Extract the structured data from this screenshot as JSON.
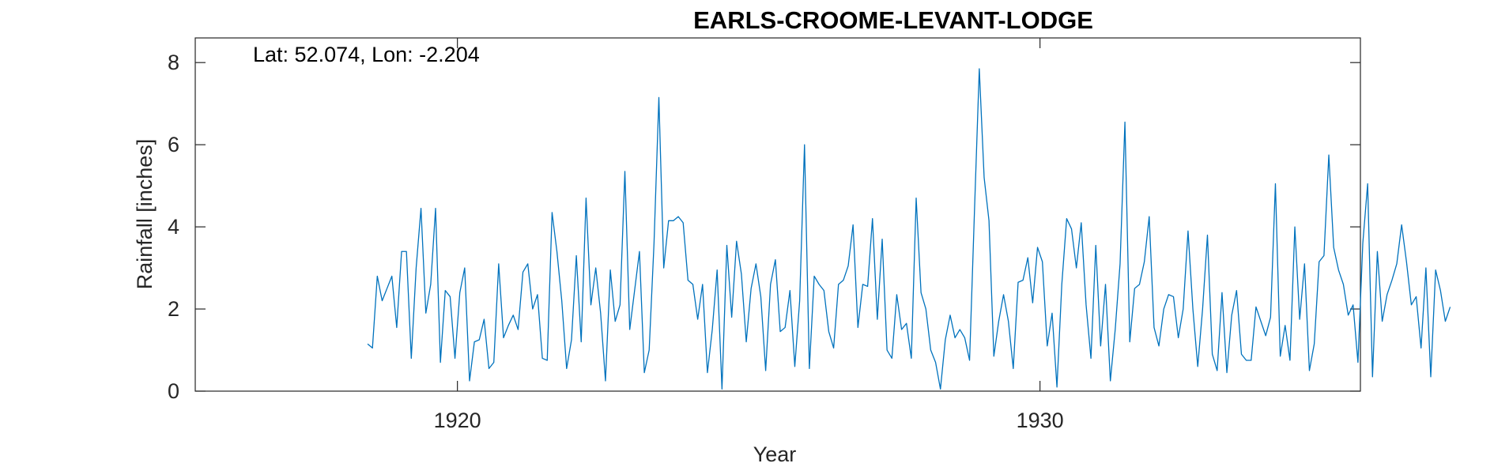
{
  "chart_data": {
    "type": "line",
    "title": "EARLS-CROOME-LEVANT-LODGE",
    "annotation": "Lat: 52.074, Lon: -2.204",
    "xlabel": "Year",
    "ylabel": "Rainfall [inches]",
    "xlim": [
      1915.5,
      1935.5
    ],
    "ylim": [
      0,
      8.6
    ],
    "xticks": [
      1920,
      1930
    ],
    "yticks": [
      0,
      2,
      4,
      6,
      8
    ],
    "grid": false,
    "line_color": "#0072bd",
    "series": [
      {
        "x_start": 1918.4583,
        "x_step": 0.08333,
        "values": [
          1.15,
          1.05,
          2.8,
          2.2,
          2.5,
          2.8,
          1.55,
          3.4,
          3.4,
          0.8,
          3.0,
          4.45,
          1.9,
          2.6,
          4.45,
          0.7,
          2.45,
          2.3,
          0.8,
          2.4,
          3.0,
          0.25,
          1.2,
          1.25,
          1.75,
          0.55,
          0.7,
          3.1,
          1.3,
          1.6,
          1.85,
          1.5,
          2.9,
          3.1,
          2.0,
          2.35,
          0.8,
          0.75,
          4.35,
          3.4,
          2.2,
          0.55,
          1.25,
          3.3,
          1.2,
          4.7,
          2.1,
          3.0,
          1.9,
          0.25,
          2.95,
          1.7,
          2.1,
          5.35,
          1.5,
          2.45,
          3.4,
          0.45,
          1.0,
          3.6,
          7.15,
          3.0,
          4.15,
          4.15,
          4.25,
          4.1,
          2.7,
          2.6,
          1.75,
          2.6,
          0.45,
          1.5,
          2.95,
          0.05,
          3.55,
          1.8,
          3.65,
          2.85,
          1.2,
          2.5,
          3.1,
          2.3,
          0.5,
          2.6,
          3.2,
          1.45,
          1.55,
          2.45,
          0.6,
          2.2,
          6.0,
          0.55,
          2.8,
          2.6,
          2.45,
          1.45,
          1.05,
          2.6,
          2.7,
          3.05,
          4.05,
          1.55,
          2.6,
          2.55,
          4.2,
          1.75,
          3.7,
          1.0,
          0.8,
          2.35,
          1.5,
          1.65,
          0.8,
          4.7,
          2.4,
          2.0,
          1.0,
          0.7,
          0.05,
          1.25,
          1.85,
          1.3,
          1.5,
          1.3,
          0.75,
          4.35,
          7.85,
          5.2,
          4.15,
          0.85,
          1.7,
          2.35,
          1.7,
          0.55,
          2.65,
          2.7,
          3.25,
          2.15,
          3.5,
          3.15,
          1.1,
          1.9,
          0.1,
          2.6,
          4.2,
          3.95,
          3.0,
          4.1,
          2.1,
          0.8,
          3.55,
          1.1,
          2.6,
          0.25,
          1.5,
          3.1,
          6.55,
          1.2,
          2.5,
          2.6,
          3.15,
          4.25,
          1.55,
          1.1,
          2.0,
          2.35,
          2.3,
          1.3,
          2.0,
          3.9,
          2.0,
          0.6,
          2.0,
          3.8,
          0.9,
          0.5,
          2.4,
          0.45,
          1.85,
          2.45,
          0.9,
          0.75,
          0.75,
          2.05,
          1.7,
          1.35,
          1.8,
          5.05,
          0.85,
          1.6,
          0.75,
          4.0,
          1.75,
          3.1,
          0.5,
          1.15,
          3.15,
          3.3,
          5.75,
          3.5,
          2.95,
          2.6,
          1.85,
          2.1,
          0.7,
          3.6,
          5.05,
          0.35,
          3.4,
          1.7,
          2.35,
          2.7,
          3.1,
          4.05,
          3.15,
          2.1,
          2.3,
          1.05,
          3.0,
          0.35,
          2.95,
          2.45,
          1.7,
          2.05
        ]
      }
    ]
  }
}
